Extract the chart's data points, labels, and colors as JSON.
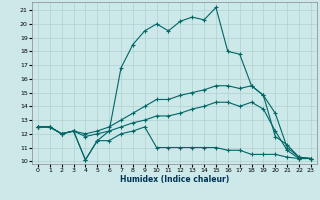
{
  "xlabel": "Humidex (Indice chaleur)",
  "xlim": [
    -0.5,
    23.5
  ],
  "ylim": [
    9.8,
    21.6
  ],
  "yticks": [
    10,
    11,
    12,
    13,
    14,
    15,
    16,
    17,
    18,
    19,
    20,
    21
  ],
  "xticks": [
    0,
    1,
    2,
    3,
    4,
    5,
    6,
    7,
    8,
    9,
    10,
    11,
    12,
    13,
    14,
    15,
    16,
    17,
    18,
    19,
    20,
    21,
    22,
    23
  ],
  "bg_color": "#cce8e8",
  "grid_color": "#b0d0d0",
  "line_color": "#006666",
  "series": [
    {
      "x": [
        0,
        1,
        2,
        3,
        4,
        5,
        6,
        7,
        8,
        9,
        10,
        11,
        12,
        13,
        14,
        15,
        16,
        17,
        18,
        19,
        20,
        21,
        22,
        23
      ],
      "y": [
        12.5,
        12.5,
        12.0,
        12.2,
        10.1,
        11.5,
        12.2,
        16.8,
        18.5,
        19.5,
        20.0,
        19.5,
        20.2,
        20.5,
        20.3,
        21.2,
        18.0,
        17.8,
        15.5,
        14.8,
        11.8,
        11.2,
        10.3,
        10.2
      ]
    },
    {
      "x": [
        0,
        1,
        2,
        3,
        4,
        5,
        6,
        7,
        8,
        9,
        10,
        11,
        12,
        13,
        14,
        15,
        16,
        17,
        18,
        19,
        20,
        21,
        22,
        23
      ],
      "y": [
        12.5,
        12.5,
        12.0,
        12.2,
        12.0,
        12.2,
        12.5,
        13.0,
        13.5,
        14.0,
        14.5,
        14.5,
        14.8,
        15.0,
        15.2,
        15.5,
        15.5,
        15.3,
        15.5,
        14.8,
        13.5,
        11.0,
        10.3,
        10.2
      ]
    },
    {
      "x": [
        0,
        1,
        2,
        3,
        4,
        5,
        6,
        7,
        8,
        9,
        10,
        11,
        12,
        13,
        14,
        15,
        16,
        17,
        18,
        19,
        20,
        21,
        22,
        23
      ],
      "y": [
        12.5,
        12.5,
        12.0,
        12.2,
        11.8,
        12.0,
        12.2,
        12.5,
        12.8,
        13.0,
        13.3,
        13.3,
        13.5,
        13.8,
        14.0,
        14.3,
        14.3,
        14.0,
        14.3,
        13.8,
        12.2,
        10.8,
        10.2,
        10.2
      ]
    },
    {
      "x": [
        0,
        1,
        2,
        3,
        4,
        5,
        6,
        7,
        8,
        9,
        10,
        11,
        12,
        13,
        14,
        15,
        16,
        17,
        18,
        19,
        20,
        21,
        22,
        23
      ],
      "y": [
        12.5,
        12.5,
        12.0,
        12.2,
        10.1,
        11.5,
        11.5,
        12.0,
        12.2,
        12.5,
        11.0,
        11.0,
        11.0,
        11.0,
        11.0,
        11.0,
        10.8,
        10.8,
        10.5,
        10.5,
        10.5,
        10.3,
        10.2,
        10.2
      ]
    }
  ]
}
